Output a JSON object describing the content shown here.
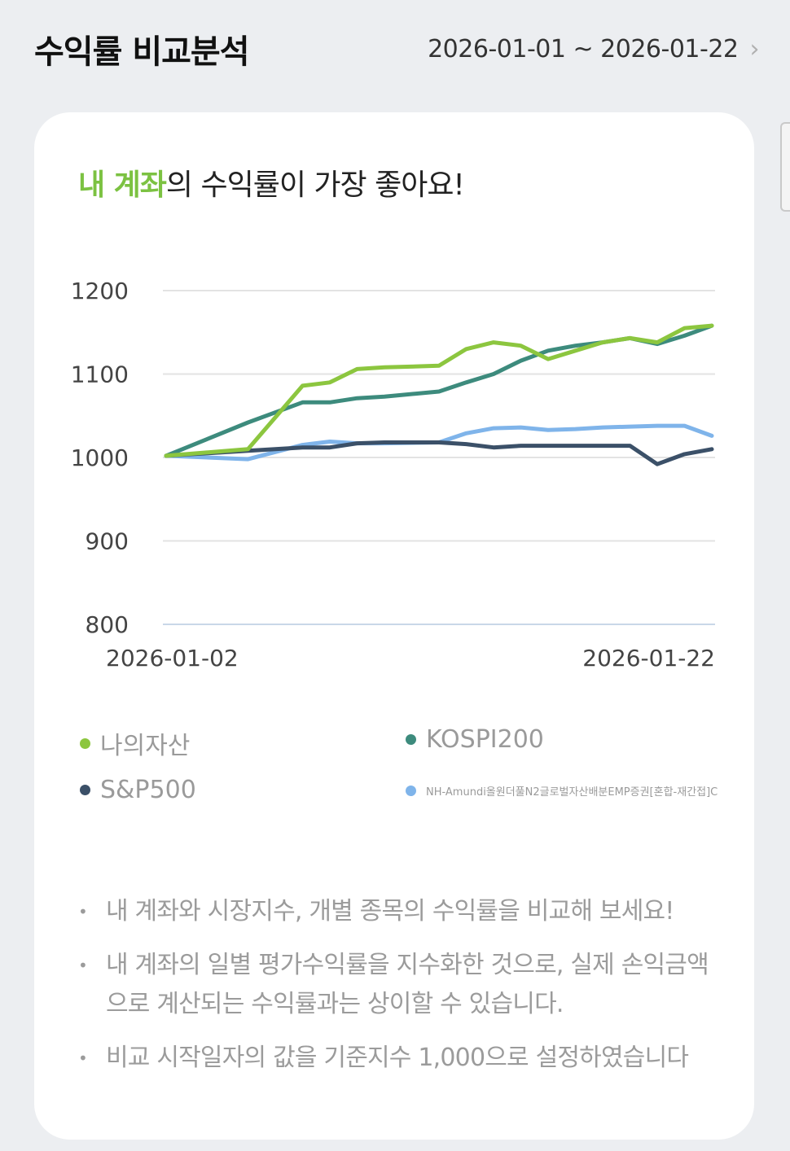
{
  "header": {
    "title": "수익률 비교분석",
    "date_range": "2026-01-01 ~ 2026-01-22"
  },
  "card": {
    "headline_highlight": "내 계좌",
    "headline_rest": "의 수익률이 가장 좋아요!"
  },
  "chart_data": {
    "type": "line",
    "ylim": [
      800,
      1200
    ],
    "yticks": [
      "1200",
      "1100",
      "1000",
      "900",
      "800"
    ],
    "x_tick_labels": [
      "2026-01-02",
      "2026-01-22"
    ],
    "grid": true,
    "x": [
      0,
      3,
      5,
      6,
      7,
      8,
      10,
      11,
      12,
      13,
      14,
      15,
      16,
      17,
      18,
      19,
      20
    ],
    "series": [
      {
        "name": "나의자산",
        "color": "#8cc63f",
        "values": [
          1002,
          1010,
          1086,
          1090,
          1106,
          1108,
          1110,
          1130,
          1138,
          1134,
          1118,
          1128,
          1138,
          1143,
          1138,
          1155,
          1158
        ]
      },
      {
        "name": "KOSPI200",
        "color": "#3d8b7d",
        "values": [
          1002,
          1042,
          1066,
          1066,
          1071,
          1073,
          1079,
          1090,
          1100,
          1116,
          1128,
          1134,
          1138,
          1143,
          1136,
          1146,
          1158
        ]
      },
      {
        "name": "S&P500",
        "color": "#3b5068",
        "values": [
          1002,
          1008,
          1012,
          1012,
          1017,
          1018,
          1018,
          1016,
          1012,
          1014,
          1014,
          1014,
          1014,
          1014,
          992,
          1004,
          1010
        ]
      },
      {
        "name": "NH-Amundi올원더풀N2글로벌자산배분EMP증권[혼합-재간접]C",
        "color": "#7fb4ea",
        "values": [
          1002,
          998,
          1015,
          1019,
          1017,
          1017,
          1018,
          1029,
          1035,
          1036,
          1033,
          1034,
          1036,
          1037,
          1038,
          1038,
          1026
        ]
      }
    ]
  },
  "notes": [
    "내 계좌와 시장지수, 개별 종목의 수익률을 비교해 보세요!",
    "내 계좌의 일별 평가수익률을 지수화한 것으로, 실제 손익금액으로 계산되는 수익률과는 상이할 수 있습니다.",
    "비교 시작일자의 값을 기준지수 1,000으로 설정하였습니다"
  ],
  "icons": {
    "bullet": "bullet-dot-icon",
    "chevron": "chevron-right-icon"
  },
  "colors": {
    "accent": "#7cc242",
    "background": "#eceef1",
    "card": "#ffffff"
  }
}
